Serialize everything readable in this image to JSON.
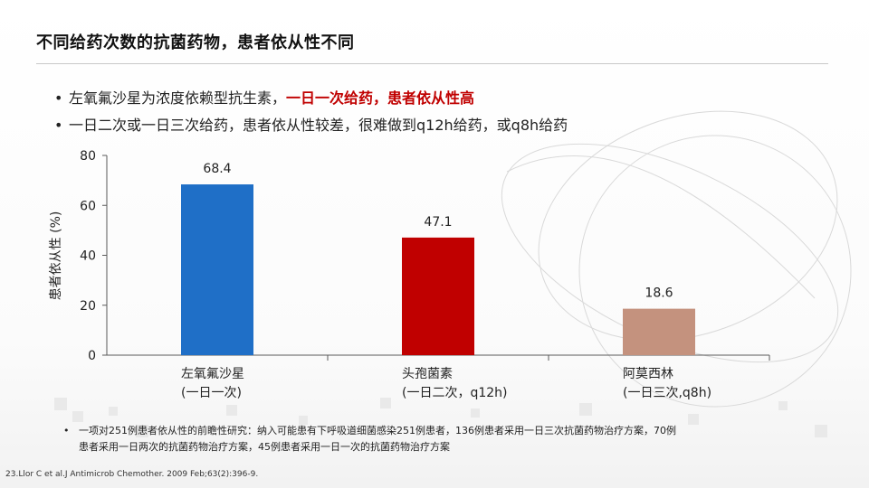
{
  "title": "不同给药次数的抗菌药物，患者依从性不同",
  "bullets": [
    {
      "normal": "左氧氟沙星为浓度依赖型抗生素，",
      "emphasis": "一日一次给药，患者依从性高"
    },
    {
      "normal": "一日二次或一日三次给药，患者依从性较差，很难做到q12h给药，或q8h给药",
      "emphasis": ""
    }
  ],
  "chart_data": {
    "type": "bar",
    "categories": [
      [
        "左氧氟沙星",
        "(一日一次)"
      ],
      [
        "头孢菌素",
        "(一日二次，q12h)"
      ],
      [
        "阿莫西林",
        "(一日三次,q8h)"
      ]
    ],
    "values": [
      68.4,
      47.1,
      18.6
    ],
    "colors": [
      "#1f6fc7",
      "#c00000",
      "#c4927e"
    ],
    "ylabel": "患者依从性 (%)",
    "xlabel": "",
    "ylim": [
      0,
      80
    ],
    "yticks": [
      0,
      20,
      40,
      60,
      80
    ],
    "grid": false,
    "data_labels": true
  },
  "footnote": {
    "line1": "一项对251例患者依从性的前瞻性研究：纳入可能患有下呼吸道细菌感染251例患者，136例患者采用一日三次抗菌药物治疗方案，70例",
    "line2": "患者采用一日两次的抗菌药物治疗方案，45例患者采用一日一次的抗菌药物治疗方案"
  },
  "citation": "23.Llor C et al.J Antimicrob Chemother. 2009 Feb;63(2):396-9."
}
